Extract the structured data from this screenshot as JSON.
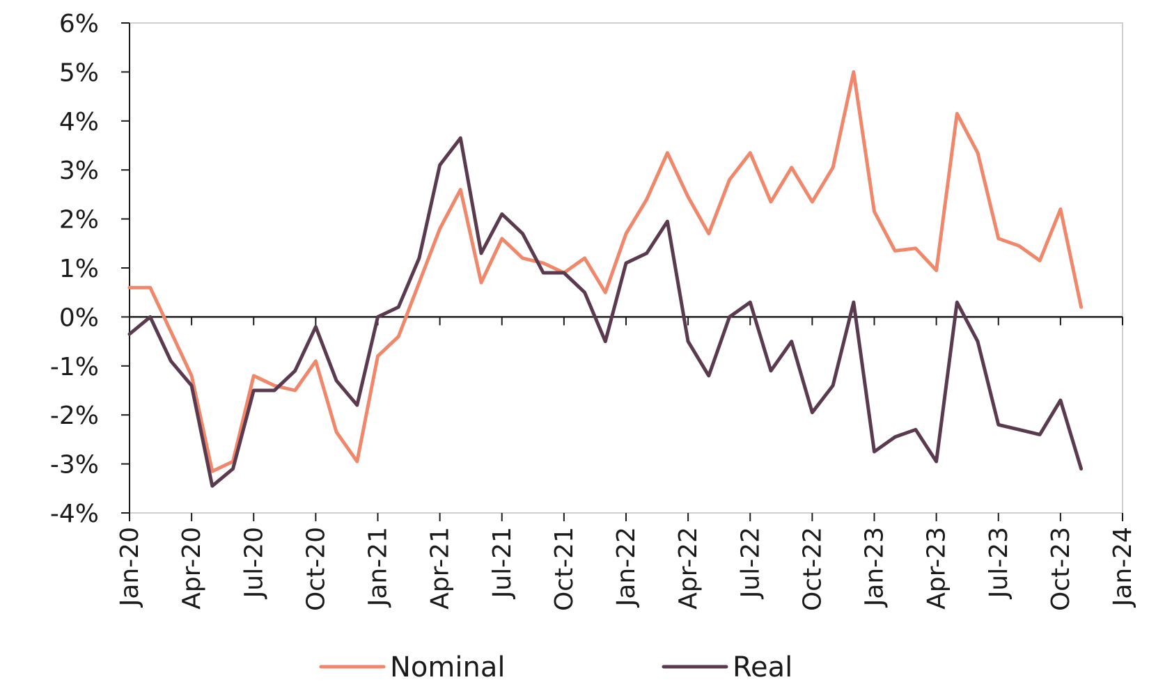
{
  "chart_data": {
    "type": "line",
    "title": "",
    "xlabel": "",
    "ylabel": "",
    "ylim": [
      -4,
      6
    ],
    "y_ticks": [
      6,
      5,
      4,
      3,
      2,
      1,
      0,
      -1,
      -2,
      -3,
      -4
    ],
    "y_tick_labels": [
      "6%",
      "5%",
      "4%",
      "3%",
      "2%",
      "1%",
      "0%",
      "-1%",
      "-2%",
      "-3%",
      "-4%"
    ],
    "x_ticks": [
      "Jan-20",
      "Apr-20",
      "Jul-20",
      "Oct-20",
      "Jan-21",
      "Apr-21",
      "Jul-21",
      "Oct-21",
      "Jan-22",
      "Apr-22",
      "Jul-22",
      "Oct-22",
      "Jan-23",
      "Apr-23",
      "Jul-23",
      "Oct-23",
      "Jan-24"
    ],
    "x_range": [
      "Jan-20",
      "Jan-24"
    ],
    "grid": false,
    "legend_position": "bottom",
    "x": [
      "Jan-20",
      "Feb-20",
      "Mar-20",
      "Apr-20",
      "May-20",
      "Jun-20",
      "Jul-20",
      "Aug-20",
      "Sep-20",
      "Oct-20",
      "Nov-20",
      "Dec-20",
      "Jan-21",
      "Feb-21",
      "Mar-21",
      "Apr-21",
      "May-21",
      "Jun-21",
      "Jul-21",
      "Aug-21",
      "Sep-21",
      "Oct-21",
      "Nov-21",
      "Dec-21",
      "Jan-22",
      "Feb-22",
      "Mar-22",
      "Apr-22",
      "May-22",
      "Jun-22",
      "Jul-22",
      "Aug-22",
      "Sep-22",
      "Oct-22",
      "Nov-22",
      "Dec-22",
      "Jan-23",
      "Feb-23",
      "Mar-23",
      "Apr-23",
      "May-23",
      "Jun-23",
      "Jul-23",
      "Aug-23",
      "Sep-23",
      "Oct-23",
      "Nov-23"
    ],
    "series": [
      {
        "name": "Nominal",
        "color": "#F0876A",
        "values": [
          0.6,
          0.6,
          -0.3,
          -1.2,
          -3.15,
          -2.95,
          -1.2,
          -1.4,
          -1.5,
          -0.9,
          -2.35,
          -2.95,
          -0.8,
          -0.4,
          0.7,
          1.8,
          2.6,
          0.7,
          1.6,
          1.2,
          1.1,
          0.9,
          1.2,
          0.5,
          1.7,
          2.4,
          3.35,
          2.45,
          1.7,
          2.8,
          3.35,
          2.35,
          3.05,
          2.35,
          3.05,
          5.0,
          2.15,
          1.35,
          1.4,
          0.95,
          4.15,
          3.35,
          1.6,
          1.45,
          1.15,
          2.2,
          0.2
        ]
      },
      {
        "name": "Real",
        "color": "#5A3A4E",
        "values": [
          -0.35,
          0.0,
          -0.9,
          -1.4,
          -3.45,
          -3.1,
          -1.5,
          -1.5,
          -1.1,
          -0.2,
          -1.3,
          -1.8,
          0.0,
          0.2,
          1.2,
          3.1,
          3.65,
          1.3,
          2.1,
          1.7,
          0.9,
          0.9,
          0.5,
          -0.5,
          1.1,
          1.3,
          1.95,
          -0.5,
          -1.2,
          0.0,
          0.3,
          -1.1,
          -0.5,
          -1.95,
          -1.4,
          0.3,
          -2.75,
          -2.45,
          -2.3,
          -2.95,
          0.3,
          -0.5,
          -2.2,
          -2.3,
          -2.4,
          -1.7,
          -3.1
        ]
      }
    ]
  }
}
